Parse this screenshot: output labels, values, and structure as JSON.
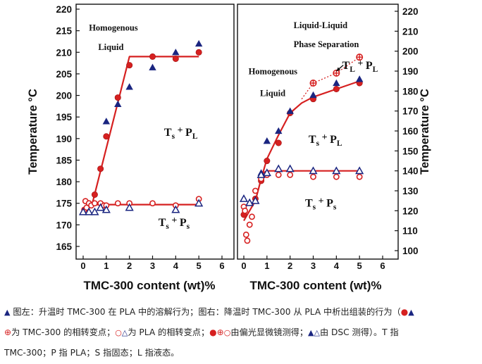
{
  "chart_data": [
    {
      "type": "scatter",
      "panel": "left",
      "ylabel": "Temperature °C",
      "xlabel": "TMC-300 content (wt)%",
      "xlim": [
        0,
        6
      ],
      "ylim": [
        165,
        220
      ],
      "xticks": [
        "0",
        "1",
        "2",
        "3",
        "4",
        "5",
        "6"
      ],
      "yticks": [
        "165",
        "170",
        "175",
        "180",
        "185",
        "190",
        "195",
        "200",
        "205",
        "210",
        "215",
        "220"
      ],
      "annotations": [
        {
          "text": "Homogenous",
          "x": 0.25,
          "y": 215.0
        },
        {
          "text": "Liquid",
          "x": 0.65,
          "y": 210.5
        },
        {
          "text": "Ts + PL",
          "x": 3.5,
          "y": 190.6
        },
        {
          "text": "Ts + Ps",
          "x": 3.25,
          "y": 169.7
        }
      ],
      "series": [
        {
          "marker": "filled-circle",
          "color": "#d62020",
          "x": [
            0.5,
            0.75,
            1.0,
            1.5,
            2.0,
            3.0,
            4.0,
            5.0
          ],
          "y": [
            177.0,
            183.0,
            190.5,
            199.5,
            207.0,
            209.0,
            208.5,
            210.0
          ]
        },
        {
          "marker": "filled-triangle",
          "color": "#1a2580",
          "x": [
            1.0,
            1.5,
            2.0,
            3.0,
            4.0,
            5.0
          ],
          "y": [
            194.0,
            198.0,
            202.0,
            206.5,
            210.0,
            212.0
          ]
        },
        {
          "marker": "open-circle",
          "color": "#d62020",
          "x": [
            0.05,
            0.1,
            0.15,
            0.25,
            0.35,
            0.5,
            0.75,
            0.9,
            1.0,
            1.5,
            2.0,
            3.0,
            4.0,
            5.0
          ],
          "y": [
            173.5,
            175.5,
            174.0,
            175.0,
            174.5,
            175.0,
            175.0,
            174.5,
            174.5,
            175.0,
            175.0,
            175.0,
            174.5,
            176.0
          ]
        },
        {
          "marker": "open-triangle",
          "color": "#1a2580",
          "x": [
            0.0,
            0.25,
            0.5,
            0.75,
            1.0,
            2.0,
            4.0,
            5.0
          ],
          "y": [
            173.0,
            173.0,
            173.0,
            174.0,
            173.5,
            174.0,
            173.5,
            175.0
          ]
        }
      ],
      "fit_lines": [
        {
          "x": [
            0.0,
            0.4,
            2.0,
            5.0
          ],
          "y": [
            173.0,
            175.0,
            209.0,
            209.0
          ],
          "color": "#d62020"
        },
        {
          "x": [
            0.4,
            5.0
          ],
          "y": [
            174.7,
            174.7
          ],
          "color": "#d62020"
        }
      ]
    },
    {
      "type": "scatter",
      "panel": "right",
      "ylabel": "Temperature °C",
      "xlabel": "TMC-300 content (wt)%",
      "xlim": [
        0,
        6
      ],
      "ylim": [
        100,
        220
      ],
      "xticks": [
        "0",
        "1",
        "2",
        "3",
        "4",
        "5",
        "6"
      ],
      "yticks": [
        "100",
        "110",
        "120",
        "130",
        "140",
        "150",
        "160",
        "170",
        "180",
        "190",
        "200",
        "210",
        "220"
      ],
      "annotations": [
        {
          "text": "Liquid-Liquid",
          "x": 2.15,
          "y": 211.5
        },
        {
          "text": "Phase Separation",
          "x": 2.15,
          "y": 202.0
        },
        {
          "text": "TL + PL",
          "x": 4.25,
          "y": 191.0
        },
        {
          "text": "Homogenous",
          "x": 0.2,
          "y": 188.5
        },
        {
          "text": "Liquid",
          "x": 0.7,
          "y": 177.5
        },
        {
          "text": "Ts + PL",
          "x": 2.8,
          "y": 154.0
        },
        {
          "text": "Ts + Ps",
          "x": 2.65,
          "y": 122.0
        }
      ],
      "series": [
        {
          "marker": "filled-circle",
          "color": "#d62020",
          "x": [
            0.0,
            0.5,
            0.75,
            1.0,
            1.5,
            2.0,
            3.0,
            4.0,
            5.0
          ],
          "y": [
            118.0,
            126.0,
            135.0,
            145.0,
            154.0,
            169.0,
            176.0,
            181.0,
            184.0
          ]
        },
        {
          "marker": "filled-triangle",
          "color": "#1a2580",
          "x": [
            0.75,
            1.0,
            1.5,
            2.0,
            3.0,
            4.0,
            5.0
          ],
          "y": [
            139.0,
            155.0,
            160.0,
            170.0,
            178.0,
            184.0,
            186.0
          ]
        },
        {
          "marker": "crossed-circle",
          "color": "#d62020",
          "x": [
            3.0,
            4.0,
            5.0
          ],
          "y": [
            184.0,
            189.0,
            197.0
          ]
        },
        {
          "marker": "open-circle",
          "color": "#d62020",
          "x": [
            0.0,
            0.05,
            0.1,
            0.15,
            0.25,
            0.35,
            0.5,
            0.75,
            1.0,
            1.5,
            2.0,
            3.0,
            4.0,
            5.0
          ],
          "y": [
            122.0,
            120.0,
            108.0,
            105.0,
            113.0,
            117.0,
            130.0,
            136.0,
            138.0,
            138.0,
            138.0,
            137.0,
            137.0,
            137.0
          ]
        },
        {
          "marker": "open-triangle",
          "color": "#1a2580",
          "x": [
            0.0,
            0.25,
            0.5,
            0.75,
            1.0,
            1.5,
            2.0,
            3.0,
            4.0,
            5.0
          ],
          "y": [
            126.0,
            124.0,
            125.0,
            138.0,
            139.0,
            141.0,
            141.0,
            140.0,
            140.0,
            140.0
          ]
        }
      ],
      "fit_lines": [
        {
          "x": [
            0.0,
            0.5,
            0.75,
            1.0,
            1.5,
            2.0,
            2.5,
            3.0,
            4.0,
            5.0
          ],
          "y": [
            115.0,
            125.0,
            136.0,
            146.0,
            158.0,
            169.0,
            174.0,
            177.0,
            181.0,
            185.0
          ],
          "color": "#d62020"
        },
        {
          "x": [
            0.7,
            1.0,
            2.0,
            5.0
          ],
          "y": [
            138.0,
            140.0,
            140.0,
            140.0
          ],
          "color": "#d62020"
        }
      ],
      "dotted_lines": [
        {
          "x": [
            2.5,
            3.0,
            4.0,
            5.0
          ],
          "y": [
            176.0,
            184.0,
            189.0,
            197.0
          ],
          "color": "#d62020"
        }
      ],
      "arrow": {
        "from": [
          4.3,
          193.0
        ],
        "to": [
          4.0,
          190.0
        ]
      }
    }
  ],
  "caption": {
    "line1_a": "图左：升温时 TMC-300 在 PLA 中的溶解行为；图右：降温时 TMC-300 从 PLA 中析出组装的行为（",
    "line2_a": "为 TMC-300 的相转变点；",
    "line2_b": "为 PLA 的相转变点；",
    "line2_c": "由偏光显微镜测得；",
    "line2_d": "由 DSC 测得）。T 指",
    "line3": "TMC-300；P 指 PLA；S 指固态；L 指液态。"
  }
}
